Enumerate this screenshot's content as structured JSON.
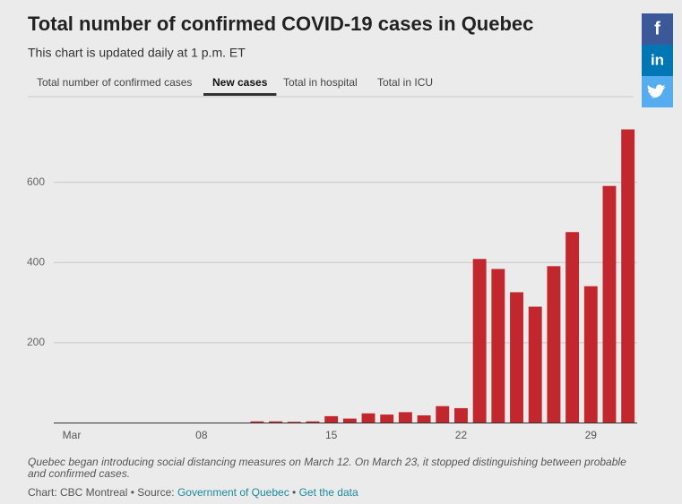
{
  "chart_data": {
    "type": "bar",
    "title": "Total number of confirmed COVID-19 cases in Quebec",
    "subtitle": "This chart is updated daily at 1 p.m. ET",
    "tabs": [
      "Total number of confirmed cases",
      "New cases",
      "Total in hospital",
      "Total in ICU"
    ],
    "active_tab": 1,
    "categories": [
      "Mar",
      null,
      null,
      null,
      null,
      null,
      null,
      "08",
      null,
      null,
      null,
      null,
      null,
      null,
      "15",
      null,
      null,
      null,
      null,
      null,
      null,
      "22",
      null,
      null,
      null,
      null,
      null,
      null,
      "29",
      null,
      null
    ],
    "values": [
      0,
      0,
      0,
      0,
      0,
      0,
      0,
      0,
      0,
      0,
      4,
      4,
      3,
      4,
      17,
      11,
      24,
      21,
      27,
      19,
      42,
      37,
      409,
      384,
      326,
      290,
      391,
      476,
      341,
      591,
      732
    ],
    "color": "#c1272d",
    "ylim": [
      0,
      760
    ],
    "yticks": [
      200,
      400,
      600
    ],
    "grid": true,
    "note": "Quebec began introducing social distancing measures on March 12. On March 23, it stopped distinguishing between probable and confirmed cases.",
    "source": {
      "credit": "Chart: CBC Montreal",
      "separator": "•",
      "source_label": "Source:",
      "source_link": "Government of Quebec",
      "data_link": "Get the data"
    }
  },
  "share": {
    "facebook": "f",
    "linkedin": "in"
  }
}
